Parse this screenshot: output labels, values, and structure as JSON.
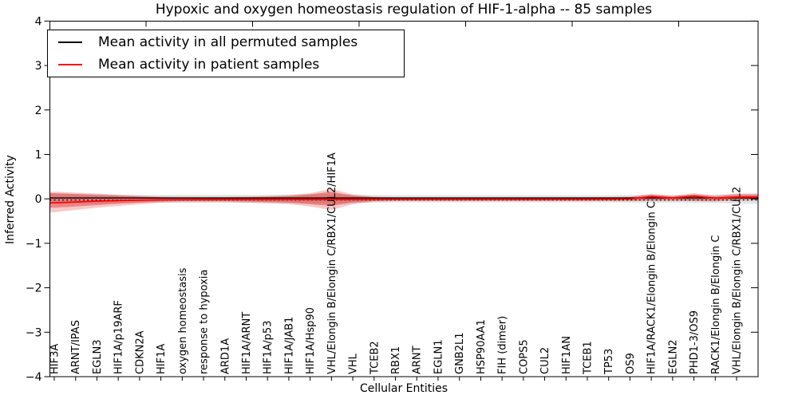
{
  "title": "Hypoxic and oxygen homeostasis regulation of HIF-1-alpha -- 85 samples",
  "legend": {
    "entries": [
      {
        "label": "Mean activity in all permuted samples",
        "color": "#000000"
      },
      {
        "label": "Mean activity in patient samples",
        "color": "#ff0000"
      }
    ]
  },
  "axes": {
    "xlabel": "Cellular Entities",
    "ylabel": "Inferred Activity",
    "ytick_values": [
      4,
      3,
      2,
      1,
      0,
      -1,
      -2,
      -3,
      -4
    ],
    "ytick_labels": [
      "4",
      "3",
      "2",
      "1",
      "0",
      "−1",
      "−2",
      "−3",
      "−4"
    ],
    "ylim": [
      -4,
      4
    ]
  },
  "chart_data": {
    "type": "line",
    "title": "Hypoxic and oxygen homeostasis regulation of HIF-1-alpha -- 85 samples",
    "xlabel": "Cellular Entities",
    "ylabel": "Inferred Activity",
    "ylim": [
      -4,
      4
    ],
    "grid": false,
    "legend_position": "upper left",
    "categories": [
      "HIF3A",
      "ARNT/IPAS",
      "EGLN3",
      "HIF1A/p19ARF",
      "CDKN2A",
      "HIF1A",
      "oxygen homeostasis",
      "response to hypoxia",
      "ARD1A",
      "HIF1A/ARNT",
      "HIF1A/p53",
      "HIF1A/JAB1",
      "HIF1A/Hsp90",
      "VHL/Elongin B/Elongin C/RBX1/CUL2/HIF1A",
      "VHL",
      "TCEB2",
      "RBX1",
      "ARNT",
      "EGLN1",
      "GNB2L1",
      "HSP90AA1",
      "FIH (dimer)",
      "COPS5",
      "CUL2",
      "HIF1AN",
      "TCEB1",
      "TP53",
      "OS9",
      "HIF1A/RACK1/Elongin B/Elongin C",
      "EGLN2",
      "PHD1-3/OS9",
      "RACK1/Elongin B/Elongin C",
      "VHL/Elongin B/Elongin C/RBX1/CUL2"
    ],
    "series": [
      {
        "name": "Mean activity in all permuted samples",
        "color": "#000000",
        "style": "solid",
        "constant": 0.02
      },
      {
        "name": "Permuted baseline (dotted)",
        "color": "#000000",
        "style": "dotted",
        "constant": -0.025
      },
      {
        "name": "Mean activity in patient samples",
        "color": "#ff0000",
        "style": "solid",
        "values": [
          -0.09,
          -0.07,
          -0.05,
          -0.04,
          -0.03,
          -0.022,
          -0.018,
          -0.015,
          -0.013,
          -0.012,
          -0.012,
          -0.012,
          -0.013,
          -0.013,
          -0.012,
          -0.01,
          -0.01,
          -0.01,
          -0.01,
          -0.01,
          -0.01,
          -0.01,
          -0.01,
          -0.01,
          -0.009,
          -0.008,
          -0.006,
          -0.002,
          0.05,
          0.02,
          0.06,
          0.015,
          0.04
        ]
      }
    ],
    "bands": [
      {
        "name": "permuted spread",
        "color": "rgba(128,128,128,0.22)",
        "top": [
          0.11,
          0.105,
          0.1,
          0.095,
          0.09,
          0.09,
          0.09,
          0.09,
          0.09,
          0.09,
          0.09,
          0.095,
          0.1,
          0.11,
          0.095,
          0.085,
          0.08,
          0.08,
          0.08,
          0.08,
          0.08,
          0.08,
          0.08,
          0.08,
          0.08,
          0.08,
          0.08,
          0.085,
          0.09,
          0.085,
          0.09,
          0.095,
          0.11
        ],
        "bottom": [
          -0.11,
          -0.105,
          -0.1,
          -0.095,
          -0.09,
          -0.09,
          -0.09,
          -0.09,
          -0.09,
          -0.09,
          -0.09,
          -0.095,
          -0.1,
          -0.11,
          -0.095,
          -0.085,
          -0.08,
          -0.08,
          -0.08,
          -0.08,
          -0.08,
          -0.08,
          -0.08,
          -0.08,
          -0.08,
          -0.08,
          -0.08,
          -0.085,
          -0.09,
          -0.085,
          -0.09,
          -0.095,
          -0.11
        ]
      },
      {
        "name": "patient spread outer",
        "color": "rgba(225,40,40,0.25)",
        "top": [
          0.16,
          0.14,
          0.12,
          0.09,
          0.07,
          0.05,
          0.045,
          0.045,
          0.045,
          0.05,
          0.065,
          0.085,
          0.13,
          0.22,
          0.1,
          0.05,
          0.035,
          0.035,
          0.035,
          0.035,
          0.035,
          0.035,
          0.035,
          0.035,
          0.035,
          0.035,
          0.04,
          0.05,
          0.115,
          0.07,
          0.13,
          0.07,
          0.12
        ],
        "bottom": [
          -0.3,
          -0.25,
          -0.2,
          -0.16,
          -0.12,
          -0.085,
          -0.07,
          -0.07,
          -0.07,
          -0.085,
          -0.1,
          -0.12,
          -0.17,
          -0.25,
          -0.12,
          -0.065,
          -0.05,
          -0.05,
          -0.05,
          -0.05,
          -0.05,
          -0.05,
          -0.05,
          -0.05,
          -0.05,
          -0.05,
          -0.05,
          -0.055,
          -0.045,
          -0.045,
          -0.05,
          -0.06,
          -0.04
        ]
      },
      {
        "name": "patient spread inner",
        "color": "rgba(225,40,40,0.42)",
        "top": [
          0.13,
          0.11,
          0.09,
          0.07,
          0.05,
          0.035,
          0.03,
          0.03,
          0.03,
          0.035,
          0.045,
          0.06,
          0.1,
          0.16,
          0.07,
          0.035,
          0.022,
          0.022,
          0.022,
          0.022,
          0.022,
          0.022,
          0.022,
          0.022,
          0.022,
          0.022,
          0.025,
          0.035,
          0.09,
          0.05,
          0.1,
          0.05,
          0.09
        ],
        "bottom": [
          -0.2,
          -0.17,
          -0.14,
          -0.11,
          -0.085,
          -0.06,
          -0.05,
          -0.05,
          -0.05,
          -0.06,
          -0.07,
          -0.085,
          -0.12,
          -0.16,
          -0.08,
          -0.045,
          -0.035,
          -0.035,
          -0.035,
          -0.035,
          -0.035,
          -0.035,
          -0.035,
          -0.035,
          -0.035,
          -0.035,
          -0.035,
          -0.035,
          -0.03,
          -0.03,
          -0.035,
          -0.04,
          -0.01
        ]
      }
    ]
  }
}
